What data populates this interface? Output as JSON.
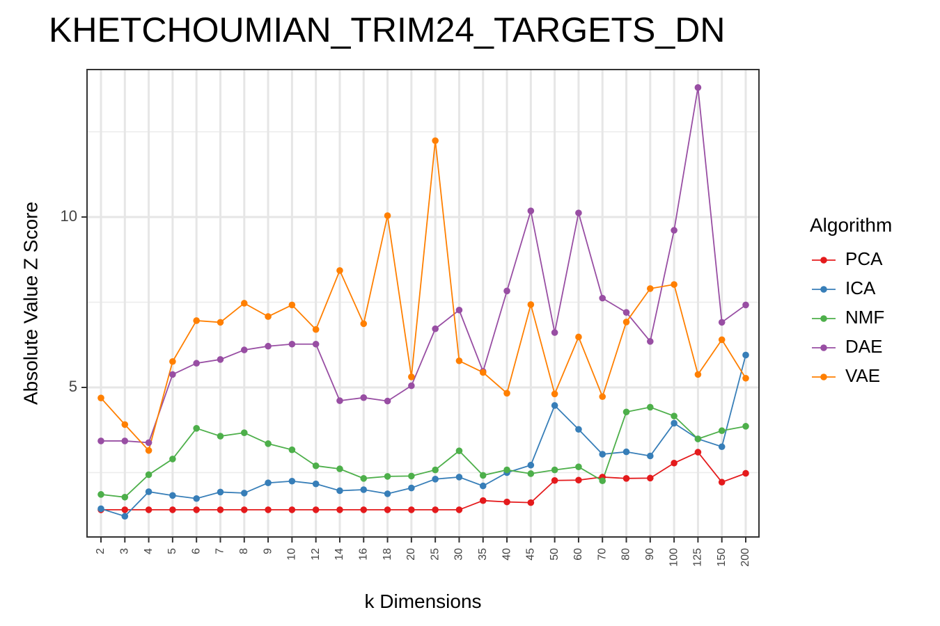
{
  "chart_data": {
    "type": "line",
    "title": "KHETCHOUMIAN_TRIM24_TARGETS_DN",
    "xlabel": "k Dimensions",
    "ylabel": "Absolute Value Z Score",
    "categories": [
      "2",
      "3",
      "4",
      "5",
      "6",
      "7",
      "8",
      "9",
      "10",
      "12",
      "14",
      "16",
      "18",
      "20",
      "25",
      "30",
      "35",
      "40",
      "45",
      "50",
      "60",
      "70",
      "80",
      "90",
      "100",
      "125",
      "150",
      "200"
    ],
    "yticks": [
      5,
      10
    ],
    "ylim": [
      0.8,
      13.0
    ],
    "grid": true,
    "legend": {
      "title": "Algorithm",
      "position": "right"
    },
    "series": [
      {
        "name": "PCA",
        "color": "#E41A1C",
        "values": [
          1.41,
          1.41,
          1.41,
          1.41,
          1.41,
          1.41,
          1.41,
          1.41,
          1.41,
          1.41,
          1.41,
          1.41,
          1.41,
          1.41,
          1.41,
          1.41,
          1.68,
          1.64,
          1.62,
          2.27,
          2.28,
          2.37,
          2.33,
          2.34,
          2.78,
          3.1,
          2.22,
          2.48
        ]
      },
      {
        "name": "ICA",
        "color": "#377EB8",
        "values": [
          1.44,
          1.22,
          1.94,
          1.83,
          1.74,
          1.93,
          1.9,
          2.2,
          2.25,
          2.17,
          1.97,
          2.0,
          1.88,
          2.05,
          2.31,
          2.37,
          2.11,
          2.5,
          2.72,
          4.47,
          3.77,
          3.04,
          3.11,
          2.99,
          3.95,
          3.49,
          3.26,
          5.95
        ]
      },
      {
        "name": "NMF",
        "color": "#4DAF4A",
        "values": [
          1.86,
          1.78,
          2.44,
          2.9,
          3.8,
          3.57,
          3.67,
          3.35,
          3.17,
          2.7,
          2.61,
          2.33,
          2.39,
          2.4,
          2.58,
          3.14,
          2.42,
          2.58,
          2.47,
          2.58,
          2.67,
          2.26,
          4.28,
          4.42,
          4.16,
          3.49,
          3.73,
          3.86
        ]
      },
      {
        "name": "DAE",
        "color": "#984EA3",
        "values": [
          3.43,
          3.43,
          3.38,
          5.38,
          5.71,
          5.82,
          6.1,
          6.21,
          6.27,
          6.27,
          4.61,
          4.7,
          4.6,
          5.05,
          6.72,
          7.27,
          5.47,
          7.83,
          10.18,
          6.61,
          10.12,
          7.62,
          7.2,
          6.35,
          9.61,
          13.8,
          6.91,
          7.42
        ]
      },
      {
        "name": "VAE",
        "color": "#FF7F00",
        "values": [
          4.69,
          3.91,
          3.15,
          5.76,
          6.96,
          6.91,
          7.47,
          7.08,
          7.42,
          6.7,
          8.43,
          6.87,
          10.04,
          5.31,
          12.24,
          5.78,
          5.44,
          4.83,
          7.43,
          4.81,
          6.48,
          4.73,
          6.92,
          7.9,
          8.02,
          5.38,
          6.4,
          5.27
        ]
      }
    ]
  }
}
